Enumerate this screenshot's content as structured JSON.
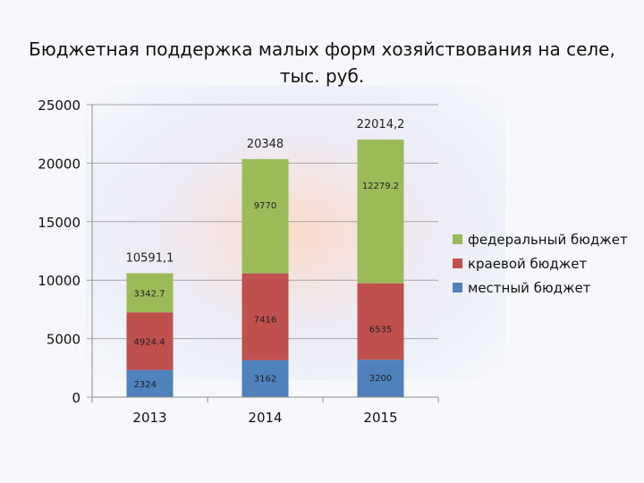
{
  "title_line1": "Бюджетная поддержка малых форм хозяйствования на селе,",
  "title_line2": "тыс. руб.",
  "chart_data": {
    "type": "bar",
    "stacked": true,
    "title": "Бюджетная поддержка малых форм хозяйствования на селе, тыс. руб.",
    "categories": [
      "2013",
      "2014",
      "2015"
    ],
    "series": [
      {
        "name": "местный бюджет",
        "color": "#4f81bd",
        "values": [
          2324,
          3162,
          3200
        ],
        "labels": [
          "2324",
          "3162",
          "3200"
        ]
      },
      {
        "name": "краевой бюджет",
        "color": "#c0504d",
        "values": [
          4924.4,
          7416,
          6535
        ],
        "labels": [
          "4924.4",
          "7416",
          "6535"
        ]
      },
      {
        "name": "федеральный бюджет",
        "color": "#9bbb59",
        "values": [
          3342.7,
          9770,
          12279.2
        ],
        "labels": [
          "3342.7",
          "9770",
          "12279.2"
        ]
      }
    ],
    "totals": [
      10591.1,
      20348,
      22014.2
    ],
    "total_labels": [
      "10591,1",
      "20348",
      "22014,2"
    ],
    "yticks": [
      "0",
      "5000",
      "10000",
      "15000",
      "20000",
      "25000"
    ],
    "ylim": [
      0,
      25000
    ],
    "grid": true,
    "legend": "right"
  }
}
